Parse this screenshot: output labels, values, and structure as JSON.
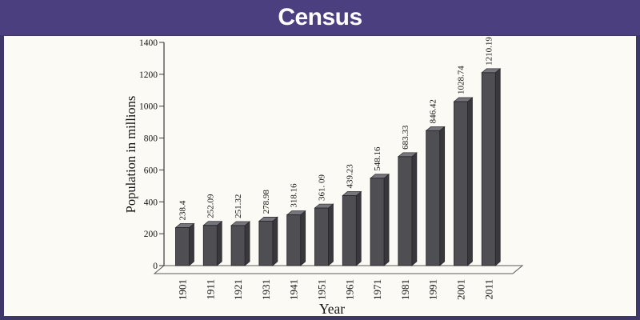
{
  "header": {
    "title": "Census"
  },
  "colors": {
    "header_bg": "#4c3f80",
    "border": "#3e3769",
    "page_bg": "#fbfaf4",
    "title_text": "#ffffff",
    "bar_front": "#4f4e53",
    "bar_top": "#76757b",
    "bar_side": "#38373c",
    "bar_outline": "#28272c",
    "axis": "#3a3a3a",
    "text": "#151515"
  },
  "chart_data": {
    "type": "bar",
    "style": "3d-column",
    "title": "Census",
    "categories": [
      "1901",
      "1911",
      "1921",
      "1931",
      "1941",
      "1951",
      "1961",
      "1971",
      "1981",
      "1991",
      "2001",
      "2011"
    ],
    "values": [
      238.4,
      252.09,
      251.32,
      278.98,
      318.16,
      361.09,
      439.23,
      548.16,
      683.33,
      846.42,
      1028.74,
      1210.19
    ],
    "value_labels": [
      "238.4",
      "252.09",
      "251.32",
      "278.98",
      "318.16",
      "361. 09",
      "439.23",
      "548.16",
      "683.33",
      "846.42",
      "1028.74",
      "1210.19"
    ],
    "xlabel": "Year",
    "ylabel": "Population in millions",
    "ylim": [
      0,
      1400
    ],
    "ytick_step": 200,
    "yticks": [
      0,
      200,
      400,
      600,
      800,
      1000,
      1200,
      1400
    ],
    "grid": false,
    "legend_position": "none",
    "label_rotation_deg": -90
  }
}
